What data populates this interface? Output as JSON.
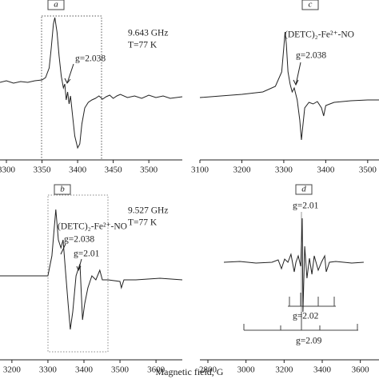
{
  "chart_data": [
    {
      "type": "line",
      "panel_label": "a",
      "color": "#222222",
      "xlim": [
        3291,
        3547
      ],
      "xticks": [
        3300,
        3350,
        3400,
        3450,
        3500
      ],
      "ylim": [
        -100,
        90
      ],
      "x": [
        3291,
        3300,
        3310,
        3320,
        3330,
        3340,
        3350,
        3355,
        3360,
        3363,
        3366,
        3368,
        3371,
        3374,
        3377,
        3380,
        3382,
        3384,
        3386,
        3388,
        3390,
        3393,
        3396,
        3400,
        3403,
        3406,
        3410,
        3415,
        3420,
        3425,
        3430,
        3435,
        3440,
        3445,
        3450,
        3455,
        3460,
        3470,
        3480,
        3490,
        3500,
        3510,
        3520,
        3530,
        3547
      ],
      "values": [
        -3,
        -1,
        -4,
        -2,
        -3,
        -1,
        0,
        3,
        15,
        40,
        70,
        78,
        60,
        30,
        5,
        -10,
        -5,
        -25,
        -15,
        -30,
        -20,
        -45,
        -70,
        -85,
        -80,
        -55,
        -35,
        -28,
        -25,
        -23,
        -20,
        -24,
        -21,
        -19,
        -23,
        -20,
        -18,
        -22,
        -20,
        -23,
        -19,
        -22,
        -20,
        -23,
        -21
      ],
      "annotations": [
        "9.643 GHz",
        "T=77 K",
        "g=2.038"
      ]
    },
    {
      "type": "line",
      "panel_label": "c",
      "color": "#222222",
      "xlim": [
        3100,
        3527
      ],
      "xticks": [
        3100,
        3200,
        3300,
        3400,
        3500
      ],
      "ylim": [
        -100,
        90
      ],
      "x": [
        3100,
        3150,
        3200,
        3250,
        3280,
        3295,
        3300,
        3303,
        3306,
        3310,
        3315,
        3320,
        3325,
        3332,
        3338,
        3342,
        3345,
        3350,
        3360,
        3370,
        3380,
        3390,
        3395,
        3400,
        3410,
        3420,
        3440,
        3460,
        3500,
        3527
      ],
      "values": [
        -22,
        -20,
        -18,
        -15,
        -8,
        10,
        40,
        60,
        45,
        10,
        -5,
        -15,
        -10,
        -25,
        -50,
        -75,
        -60,
        -35,
        -28,
        -30,
        -27,
        -35,
        -45,
        -32,
        -30,
        -28,
        -27,
        -26,
        -25,
        -25
      ],
      "annotations": [
        "(DETC)₂-Fe²⁺-NO",
        "g=2.038"
      ]
    },
    {
      "type": "line",
      "panel_label": "b",
      "color": "#222222",
      "xlim": [
        3167,
        3673
      ],
      "xticks": [
        3200,
        3300,
        3400,
        3500,
        3600
      ],
      "ylim": [
        -100,
        95
      ],
      "x": [
        3167,
        3300,
        3311,
        3322,
        3329,
        3336,
        3342,
        3349,
        3356,
        3362,
        3369,
        3378,
        3389,
        3396,
        3402,
        3411,
        3422,
        3433,
        3444,
        3451,
        3467,
        3500,
        3504,
        3511,
        3544,
        3611,
        3673
      ],
      "values": [
        5,
        5,
        30,
        88,
        50,
        40,
        50,
        10,
        -30,
        -62,
        -40,
        5,
        20,
        -50,
        -30,
        -10,
        5,
        0,
        12,
        0,
        0,
        -2,
        -10,
        0,
        0,
        2,
        0
      ],
      "annotations": [
        "9.527 GHz",
        "T=77 K",
        "(DETC)₂-Fe²⁺-NO",
        "g=2.038",
        "g=2.01"
      ]
    },
    {
      "type": "line",
      "panel_label": "d",
      "color": "#222222",
      "xlim": [
        2758,
        3698
      ],
      "xticks": [
        2800,
        3000,
        3200,
        3400,
        3600
      ],
      "ylim": [
        -122,
        73
      ],
      "x": [
        2884,
        2968,
        3052,
        3136,
        3169,
        3186,
        3203,
        3220,
        3236,
        3253,
        3262,
        3274,
        3287,
        3295,
        3299,
        3308,
        3320,
        3333,
        3346,
        3358,
        3379,
        3396,
        3413,
        3421,
        3438,
        3471,
        3555,
        3618
      ],
      "values": [
        0,
        1,
        -1,
        0,
        3,
        -8,
        4,
        0,
        10,
        -12,
        0,
        8,
        -5,
        55,
        -62,
        20,
        -20,
        5,
        -15,
        8,
        -10,
        0,
        8,
        -12,
        0,
        1,
        -1,
        0
      ],
      "annotations": [
        "g=2.01",
        "g=2.02",
        "g=2.09"
      ]
    }
  ],
  "x_label": "Magnetic field, G"
}
